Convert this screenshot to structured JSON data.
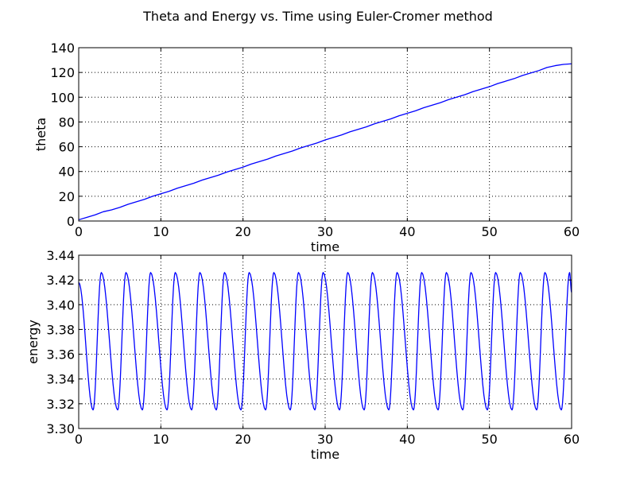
{
  "figure": {
    "title": "Theta and Energy vs. Time using Euler-Cromer  method"
  },
  "colors": {
    "line": "#0000ff",
    "grid": "#000000",
    "axes": "#000000",
    "background": "#ffffff"
  },
  "chart_data": [
    {
      "type": "line",
      "title": "",
      "xlabel": "time",
      "ylabel": "theta",
      "xlim": [
        0,
        60
      ],
      "ylim": [
        0,
        140
      ],
      "xticks": [
        0,
        10,
        20,
        30,
        40,
        50,
        60
      ],
      "yticks": [
        0,
        20,
        40,
        60,
        80,
        100,
        120,
        140
      ],
      "xtick_labels": [
        "0",
        "10",
        "20",
        "30",
        "40",
        "50",
        "60"
      ],
      "ytick_labels": [
        "0",
        "20",
        "40",
        "60",
        "80",
        "100",
        "120",
        "140"
      ],
      "grid": true,
      "grid_style": "dotted",
      "series": [
        {
          "color": "#0000ff",
          "x": [
            0,
            1,
            2,
            3,
            4,
            5,
            6,
            7,
            8,
            9,
            10,
            11,
            12,
            13,
            14,
            15,
            16,
            17,
            18,
            19,
            20,
            21,
            22,
            23,
            24,
            25,
            26,
            27,
            28,
            29,
            30,
            31,
            32,
            33,
            34,
            35,
            36,
            37,
            38,
            39,
            40,
            41,
            42,
            43,
            44,
            45,
            46,
            47,
            48,
            49,
            50,
            51,
            52,
            53,
            54,
            55,
            56,
            57,
            58,
            59,
            60
          ],
          "y": [
            1,
            3,
            5,
            7.5,
            9,
            11,
            13.5,
            15.5,
            17.5,
            20,
            22,
            24,
            26.5,
            28.5,
            30.5,
            33,
            35,
            37,
            39.5,
            41.5,
            43.5,
            46,
            48,
            50,
            52.5,
            54.5,
            56.5,
            59,
            61,
            63,
            65.5,
            67.5,
            69.5,
            72,
            74,
            76,
            78.5,
            80.5,
            82.5,
            85,
            87,
            89,
            91.5,
            93.5,
            95.5,
            98,
            100,
            102,
            104.5,
            106.5,
            108.5,
            111,
            113,
            115,
            117.5,
            119.5,
            121.5,
            124,
            125.5,
            126.5,
            127
          ]
        }
      ]
    },
    {
      "type": "line",
      "title": "",
      "xlabel": "time",
      "ylabel": "energy",
      "xlim": [
        0,
        60
      ],
      "ylim": [
        3.3,
        3.44
      ],
      "xticks": [
        0,
        10,
        20,
        30,
        40,
        50,
        60
      ],
      "yticks": [
        3.3,
        3.32,
        3.34,
        3.36,
        3.38,
        3.4,
        3.42,
        3.44
      ],
      "xtick_labels": [
        "0",
        "10",
        "20",
        "30",
        "40",
        "50",
        "60"
      ],
      "ytick_labels": [
        "3.30",
        "3.32",
        "3.34",
        "3.36",
        "3.38",
        "3.40",
        "3.42",
        "3.44"
      ],
      "grid": true,
      "grid_style": "dotted",
      "series": [
        {
          "color": "#0000ff",
          "x": [
            0,
            1.75,
            2.75,
            4.75,
            5.75,
            7.75,
            8.75,
            10.75,
            11.75,
            13.75,
            14.75,
            16.75,
            17.75,
            19.75,
            20.75,
            22.75,
            23.75,
            25.75,
            26.75,
            28.75,
            29.75,
            31.75,
            32.75,
            34.75,
            35.75,
            37.75,
            38.75,
            40.75,
            41.75,
            43.75,
            44.75,
            46.75,
            47.75,
            49.75,
            50.75,
            52.75,
            53.75,
            55.75,
            56.75,
            58.75,
            59.75,
            60
          ],
          "y": [
            3.418,
            3.315,
            3.426,
            3.315,
            3.426,
            3.315,
            3.426,
            3.315,
            3.426,
            3.315,
            3.426,
            3.315,
            3.426,
            3.315,
            3.426,
            3.315,
            3.426,
            3.315,
            3.426,
            3.315,
            3.426,
            3.315,
            3.426,
            3.315,
            3.426,
            3.315,
            3.426,
            3.315,
            3.426,
            3.315,
            3.426,
            3.315,
            3.426,
            3.315,
            3.426,
            3.315,
            3.426,
            3.315,
            3.426,
            3.315,
            3.426,
            3.41
          ]
        }
      ]
    }
  ]
}
